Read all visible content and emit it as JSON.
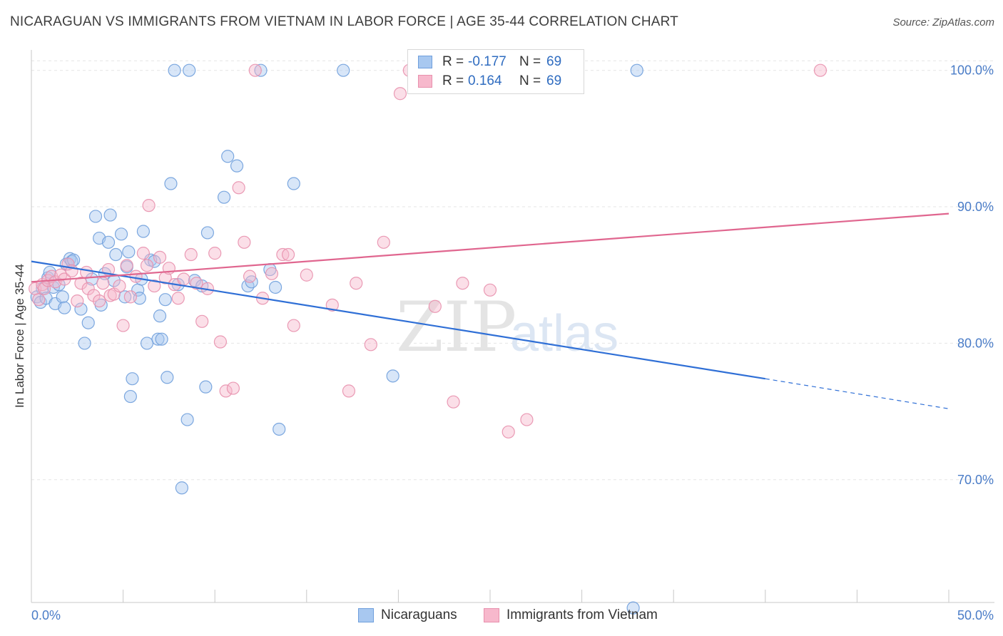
{
  "title": "NICARAGUAN VS IMMIGRANTS FROM VIETNAM IN LABOR FORCE | AGE 35-44 CORRELATION CHART",
  "source": "Source: ZipAtlas.com",
  "watermark": {
    "zip": "ZIP",
    "atlas": "atlas"
  },
  "legend_top": {
    "rows": [
      {
        "r_label": "R =",
        "r_value": "-0.177",
        "n_label": "N =",
        "n_value": "69",
        "color": "#a8c8f0",
        "border": "#6f9fdc"
      },
      {
        "r_label": "R =",
        "r_value": "0.164",
        "n_label": "N =",
        "n_value": "69",
        "color": "#f7b8cc",
        "border": "#e890ad"
      }
    ]
  },
  "legend_bottom": {
    "items": [
      {
        "label": "Nicaraguans",
        "color": "#a8c8f0",
        "border": "#6f9fdc"
      },
      {
        "label": "Immigrants from Vietnam",
        "color": "#f7b8cc",
        "border": "#e890ad"
      }
    ]
  },
  "chart_data": {
    "type": "scatter",
    "title": "NICARAGUAN VS IMMIGRANTS FROM VIETNAM IN LABOR FORCE | AGE 35-44 CORRELATION CHART",
    "xlabel": "",
    "ylabel": "In Labor Force | Age 35-44",
    "xlim": [
      0,
      50
    ],
    "ylim": [
      61,
      101.5
    ],
    "x_tick_labels": [
      "0.0%",
      "50.0%"
    ],
    "y_ticks": [
      {
        "value": 70,
        "label": "70.0%"
      },
      {
        "value": 80,
        "label": "80.0%"
      },
      {
        "value": 90,
        "label": "90.0%"
      },
      {
        "value": 100,
        "label": "100.0%"
      }
    ],
    "grid": true,
    "series": [
      {
        "name": "Nicaraguans",
        "color": "#6f9fdc",
        "fill": "#a8c8f0",
        "trend": {
          "x_start": 0,
          "y_start": 86.0,
          "x_end": 40,
          "y_end": 77.4,
          "x_dash_end": 50,
          "y_dash_end": 75.2
        },
        "points": [
          [
            0.3,
            83.4
          ],
          [
            0.5,
            83.0
          ],
          [
            0.6,
            84.0
          ],
          [
            0.8,
            83.3
          ],
          [
            0.9,
            84.8
          ],
          [
            1.0,
            85.2
          ],
          [
            1.2,
            84.1
          ],
          [
            1.3,
            82.9
          ],
          [
            1.5,
            84.3
          ],
          [
            1.7,
            83.4
          ],
          [
            1.8,
            82.6
          ],
          [
            1.9,
            85.8
          ],
          [
            2.1,
            86.2
          ],
          [
            2.2,
            86.0
          ],
          [
            2.3,
            86.1
          ],
          [
            2.7,
            82.5
          ],
          [
            2.9,
            80.0
          ],
          [
            3.1,
            81.5
          ],
          [
            3.3,
            84.7
          ],
          [
            3.5,
            89.3
          ],
          [
            3.7,
            87.7
          ],
          [
            3.8,
            82.8
          ],
          [
            4.0,
            85.1
          ],
          [
            4.2,
            87.4
          ],
          [
            4.3,
            89.4
          ],
          [
            4.5,
            84.6
          ],
          [
            4.6,
            86.5
          ],
          [
            4.9,
            88.0
          ],
          [
            5.1,
            83.4
          ],
          [
            5.2,
            85.6
          ],
          [
            5.3,
            86.7
          ],
          [
            5.5,
            77.4
          ],
          [
            5.4,
            76.1
          ],
          [
            5.8,
            83.9
          ],
          [
            5.9,
            83.3
          ],
          [
            6.0,
            84.7
          ],
          [
            6.1,
            88.2
          ],
          [
            6.3,
            80.0
          ],
          [
            6.5,
            86.1
          ],
          [
            6.7,
            86.0
          ],
          [
            6.9,
            80.3
          ],
          [
            7.0,
            82.0
          ],
          [
            7.1,
            80.3
          ],
          [
            7.3,
            83.2
          ],
          [
            7.4,
            77.5
          ],
          [
            7.6,
            91.7
          ],
          [
            7.8,
            100.0
          ],
          [
            8.0,
            84.3
          ],
          [
            8.2,
            69.4
          ],
          [
            8.5,
            74.4
          ],
          [
            8.6,
            100.0
          ],
          [
            8.9,
            84.6
          ],
          [
            9.3,
            84.2
          ],
          [
            9.5,
            76.8
          ],
          [
            9.6,
            88.1
          ],
          [
            10.5,
            90.7
          ],
          [
            10.7,
            93.7
          ],
          [
            11.2,
            93.0
          ],
          [
            11.8,
            84.2
          ],
          [
            12.0,
            84.5
          ],
          [
            12.5,
            100.0
          ],
          [
            13.0,
            85.4
          ],
          [
            13.3,
            84.1
          ],
          [
            13.5,
            73.7
          ],
          [
            14.3,
            91.7
          ],
          [
            17.0,
            100.0
          ],
          [
            19.7,
            77.6
          ],
          [
            33.0,
            100.0
          ],
          [
            32.8,
            60.6
          ]
        ]
      },
      {
        "name": "Immigrants from Vietnam",
        "color": "#e890ad",
        "fill": "#f7b8cc",
        "trend": {
          "x_start": 0,
          "y_start": 84.5,
          "x_end": 50,
          "y_end": 89.5
        },
        "points": [
          [
            0.2,
            84.0
          ],
          [
            0.4,
            83.2
          ],
          [
            0.6,
            84.3
          ],
          [
            0.7,
            84.0
          ],
          [
            0.9,
            84.6
          ],
          [
            1.1,
            84.9
          ],
          [
            1.3,
            84.5
          ],
          [
            1.6,
            85.0
          ],
          [
            1.8,
            84.7
          ],
          [
            2.0,
            85.8
          ],
          [
            2.2,
            85.3
          ],
          [
            2.5,
            83.1
          ],
          [
            2.7,
            84.4
          ],
          [
            3.0,
            85.2
          ],
          [
            3.1,
            84.0
          ],
          [
            3.4,
            83.5
          ],
          [
            3.7,
            83.1
          ],
          [
            3.9,
            84.4
          ],
          [
            4.2,
            85.4
          ],
          [
            4.3,
            83.5
          ],
          [
            4.5,
            83.6
          ],
          [
            4.8,
            84.2
          ],
          [
            5.0,
            81.3
          ],
          [
            5.2,
            85.7
          ],
          [
            5.4,
            83.4
          ],
          [
            5.7,
            84.9
          ],
          [
            6.1,
            86.6
          ],
          [
            6.3,
            85.7
          ],
          [
            6.4,
            90.1
          ],
          [
            6.7,
            84.2
          ],
          [
            7.0,
            86.3
          ],
          [
            7.3,
            84.8
          ],
          [
            7.5,
            85.5
          ],
          [
            7.8,
            84.3
          ],
          [
            8.0,
            83.3
          ],
          [
            8.3,
            84.7
          ],
          [
            8.7,
            86.5
          ],
          [
            9.0,
            84.4
          ],
          [
            9.3,
            81.6
          ],
          [
            9.6,
            84.0
          ],
          [
            10.0,
            86.6
          ],
          [
            10.3,
            80.1
          ],
          [
            10.6,
            76.5
          ],
          [
            11.0,
            76.7
          ],
          [
            11.3,
            91.4
          ],
          [
            11.6,
            87.4
          ],
          [
            11.9,
            84.9
          ],
          [
            12.2,
            100.0
          ],
          [
            12.6,
            83.3
          ],
          [
            13.1,
            85.1
          ],
          [
            13.7,
            86.5
          ],
          [
            14.0,
            86.5
          ],
          [
            14.3,
            81.3
          ],
          [
            15.0,
            85.0
          ],
          [
            16.4,
            82.8
          ],
          [
            17.3,
            76.5
          ],
          [
            17.7,
            84.4
          ],
          [
            18.5,
            79.9
          ],
          [
            19.2,
            87.4
          ],
          [
            20.1,
            98.3
          ],
          [
            20.6,
            100.0
          ],
          [
            22.0,
            82.7
          ],
          [
            23.0,
            75.7
          ],
          [
            23.5,
            84.4
          ],
          [
            24.0,
            100.0
          ],
          [
            25.0,
            83.9
          ],
          [
            26.0,
            73.5
          ],
          [
            27.0,
            74.4
          ],
          [
            43.0,
            100.0
          ]
        ]
      }
    ]
  }
}
